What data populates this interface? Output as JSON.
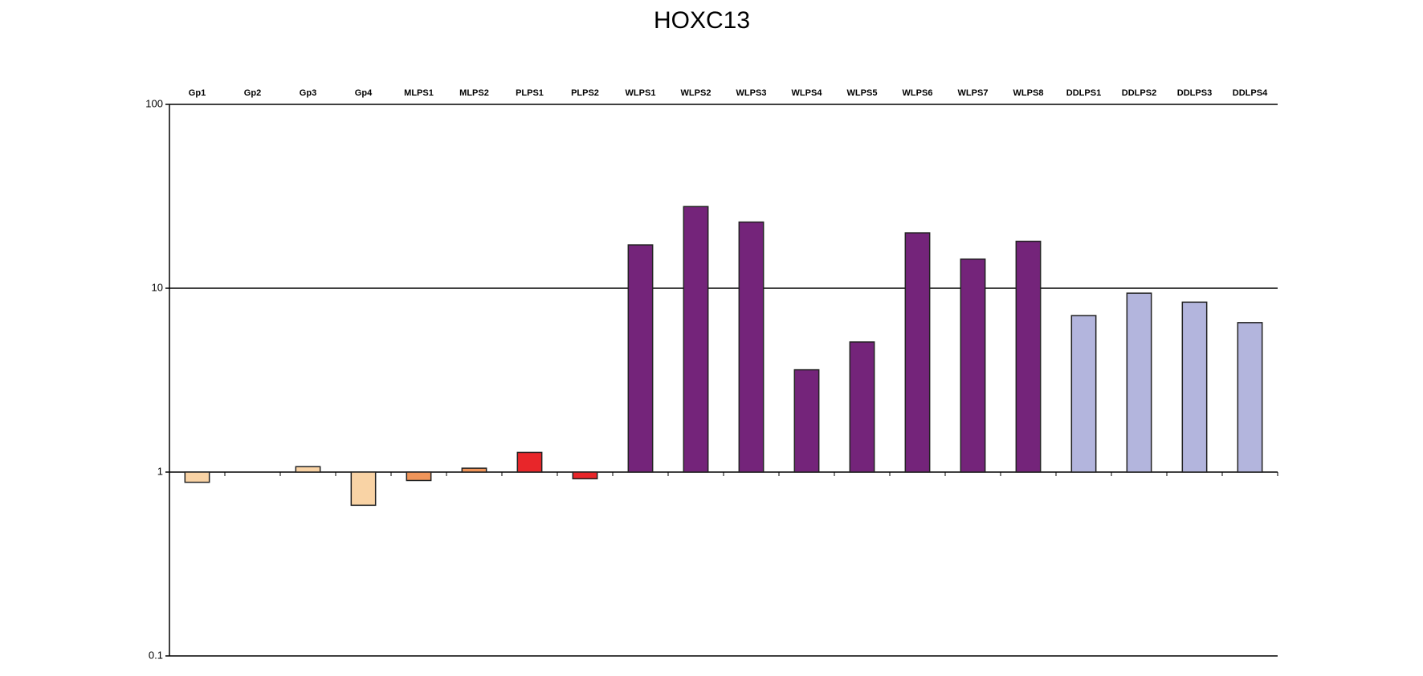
{
  "chart_data": {
    "type": "bar",
    "title": "HOXC13",
    "categories": [
      "Gp1",
      "Gp2",
      "Gp3",
      "Gp4",
      "MLPS1",
      "MLPS2",
      "PLPS1",
      "PLPS2",
      "WLPS1",
      "WLPS2",
      "WLPS3",
      "WLPS4",
      "WLPS5",
      "WLPS6",
      "WLPS7",
      "WLPS8",
      "DDLPS1",
      "DDLPS2",
      "DDLPS3",
      "DDLPS4"
    ],
    "values": [
      0.88,
      1.0,
      1.07,
      0.66,
      0.9,
      1.05,
      1.28,
      0.92,
      17.2,
      27.8,
      22.9,
      3.6,
      5.1,
      20.0,
      14.4,
      18.0,
      7.1,
      9.4,
      8.4,
      6.5
    ],
    "colors": [
      "#f9d3a5",
      "#f9d3a5",
      "#f9d3a5",
      "#f9d3a5",
      "#f0955a",
      "#f0955a",
      "#e8262a",
      "#e8262a",
      "#74247a",
      "#74247a",
      "#74247a",
      "#74247a",
      "#74247a",
      "#74247a",
      "#74247a",
      "#74247a",
      "#b3b5dd",
      "#b3b5dd",
      "#b3b5dd",
      "#b3b5dd"
    ],
    "ylim": [
      0.1,
      100
    ],
    "yticks": [
      0.1,
      1,
      10,
      100
    ],
    "log_scale": true,
    "grid": true,
    "baseline": 1
  }
}
